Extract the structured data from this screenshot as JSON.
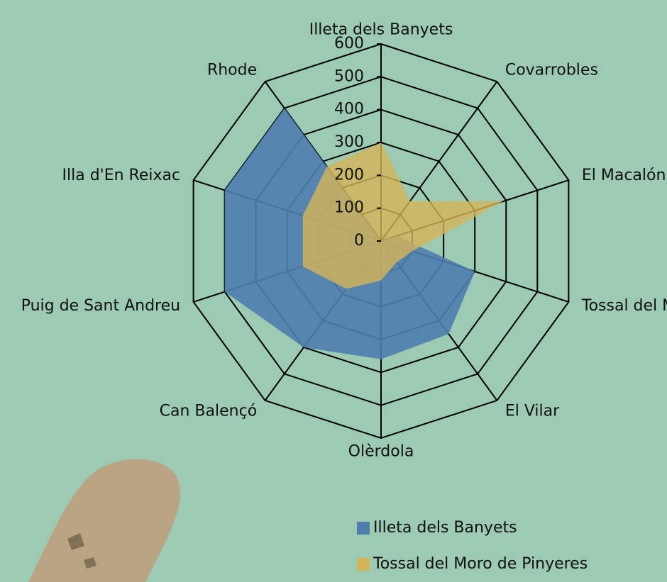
{
  "chart_data": {
    "type": "radar",
    "categories": [
      "Illeta dels Banyets",
      "Covarrobles",
      "El Macalón",
      "Tossal del Moro de Pinyeres",
      "El Vilar",
      "Olèrdola",
      "Can Balençó",
      "Puig de Sant Andreu",
      "Illa d'En Reixac",
      "Rhode"
    ],
    "series": [
      {
        "name": "Illeta dels Banyets",
        "color": "#4f7eae",
        "values": [
          0,
          0,
          50,
          300,
          350,
          360,
          400,
          500,
          500,
          500
        ]
      },
      {
        "name": "Tossal del Moro de Pinyeres",
        "color": "#d6b458",
        "values": [
          300,
          150,
          390,
          100,
          80,
          120,
          180,
          250,
          250,
          280
        ]
      }
    ],
    "ylim": [
      0,
      600
    ],
    "yticks": [
      0,
      100,
      200,
      300,
      400,
      500,
      600
    ],
    "grid": true
  }
}
